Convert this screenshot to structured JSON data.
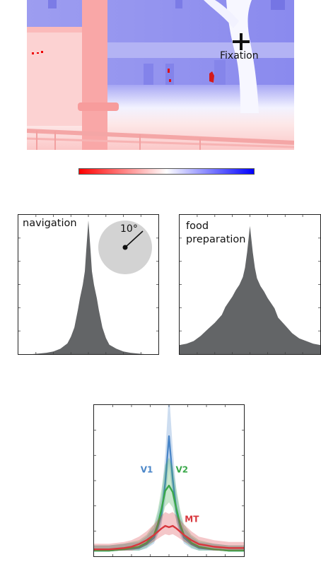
{
  "scene": {
    "fixation_label": "Fixation"
  },
  "colorbar": {
    "colors": [
      "#ff0000",
      "#ffffff",
      "#0000ff"
    ]
  },
  "panels": {
    "navigation": {
      "label": "navigation",
      "scale_label": "10°"
    },
    "food": {
      "label": "food\npreparation"
    }
  },
  "chart_data": [
    {
      "type": "area",
      "panel": "navigation",
      "title": "navigation",
      "color": "#636567",
      "x": [
        -1.0,
        -0.9,
        -0.8,
        -0.7,
        -0.6,
        -0.5,
        -0.4,
        -0.3,
        -0.25,
        -0.2,
        -0.15,
        -0.12,
        -0.1,
        -0.08,
        -0.05,
        -0.03,
        0.0,
        0.03,
        0.05,
        0.08,
        0.1,
        0.12,
        0.15,
        0.2,
        0.25,
        0.3,
        0.4,
        0.5,
        0.6,
        0.7,
        0.8,
        0.9,
        1.0
      ],
      "values": [
        0.0,
        0.0,
        0.0,
        0.005,
        0.01,
        0.02,
        0.04,
        0.08,
        0.13,
        0.2,
        0.33,
        0.42,
        0.47,
        0.52,
        0.62,
        0.78,
        1.0,
        0.78,
        0.62,
        0.52,
        0.47,
        0.42,
        0.33,
        0.2,
        0.12,
        0.07,
        0.04,
        0.02,
        0.01,
        0.005,
        0.0,
        0.0,
        0.0
      ]
    },
    {
      "type": "area",
      "panel": "food",
      "title": "food preparation",
      "color": "#636567",
      "x": [
        -1.0,
        -0.9,
        -0.8,
        -0.7,
        -0.6,
        -0.5,
        -0.4,
        -0.35,
        -0.3,
        -0.25,
        -0.2,
        -0.15,
        -0.1,
        -0.07,
        -0.04,
        0.0,
        0.04,
        0.07,
        0.1,
        0.15,
        0.2,
        0.25,
        0.3,
        0.35,
        0.4,
        0.5,
        0.6,
        0.7,
        0.8,
        0.9,
        1.0
      ],
      "values": [
        0.07,
        0.08,
        0.1,
        0.14,
        0.19,
        0.24,
        0.3,
        0.36,
        0.4,
        0.44,
        0.49,
        0.53,
        0.59,
        0.66,
        0.78,
        0.98,
        0.78,
        0.66,
        0.58,
        0.52,
        0.48,
        0.43,
        0.39,
        0.35,
        0.28,
        0.22,
        0.16,
        0.12,
        0.1,
        0.08,
        0.07
      ]
    },
    {
      "type": "line",
      "panel": "bottom",
      "xlim": [
        -1,
        1
      ],
      "ylim": [
        0,
        1
      ],
      "series": [
        {
          "name": "V1",
          "color": "#4a86c8",
          "x": [
            -1.0,
            -0.8,
            -0.6,
            -0.4,
            -0.3,
            -0.2,
            -0.15,
            -0.1,
            -0.05,
            0.0,
            0.05,
            0.1,
            0.15,
            0.2,
            0.3,
            0.4,
            0.6,
            0.8,
            1.0
          ],
          "values": [
            0.0,
            0.0,
            0.01,
            0.02,
            0.05,
            0.1,
            0.18,
            0.28,
            0.52,
            0.88,
            0.55,
            0.3,
            0.18,
            0.1,
            0.05,
            0.02,
            0.01,
            0.0,
            0.0
          ]
        },
        {
          "name": "V2",
          "color": "#3aa84a",
          "x": [
            -1.0,
            -0.8,
            -0.6,
            -0.4,
            -0.3,
            -0.2,
            -0.15,
            -0.1,
            -0.05,
            0.0,
            0.05,
            0.1,
            0.15,
            0.2,
            0.3,
            0.4,
            0.6,
            0.8,
            1.0
          ],
          "values": [
            0.0,
            0.0,
            0.01,
            0.03,
            0.06,
            0.12,
            0.2,
            0.32,
            0.46,
            0.5,
            0.45,
            0.32,
            0.2,
            0.12,
            0.06,
            0.03,
            0.01,
            0.0,
            0.0
          ]
        },
        {
          "name": "MT",
          "color": "#d8363c",
          "x": [
            -1.0,
            -0.8,
            -0.6,
            -0.5,
            -0.4,
            -0.3,
            -0.2,
            -0.1,
            -0.05,
            0.0,
            0.05,
            0.1,
            0.2,
            0.3,
            0.4,
            0.5,
            0.6,
            0.8,
            1.0
          ],
          "values": [
            0.01,
            0.01,
            0.02,
            0.03,
            0.05,
            0.08,
            0.12,
            0.17,
            0.19,
            0.18,
            0.19,
            0.17,
            0.12,
            0.08,
            0.05,
            0.04,
            0.03,
            0.02,
            0.02
          ]
        }
      ]
    }
  ]
}
